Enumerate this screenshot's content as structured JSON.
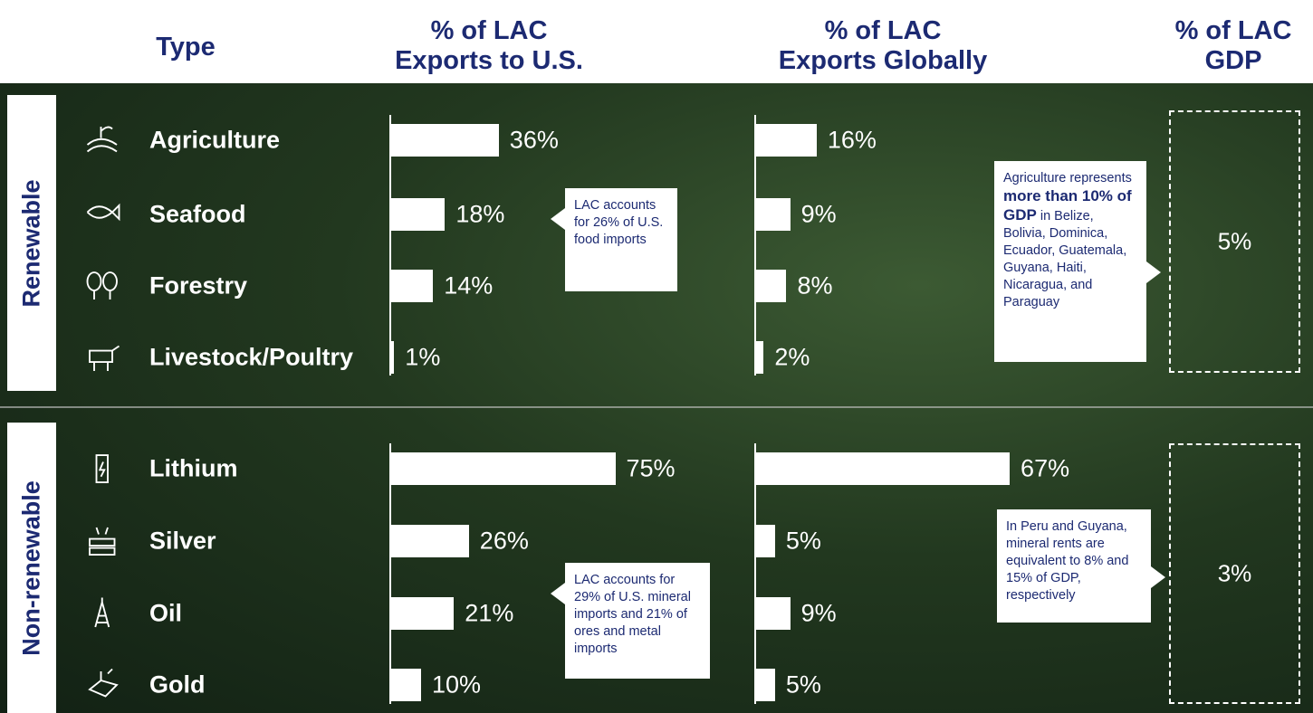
{
  "header": {
    "type": "Type",
    "columns": [
      [
        "% of LAC",
        "Exports to U.S."
      ],
      [
        "% of LAC",
        "Exports Globally"
      ],
      [
        "% of LAC",
        "GDP"
      ]
    ]
  },
  "xlim": [
    0,
    100
  ],
  "sections": [
    {
      "name": "Renewable",
      "categories": [
        "Agriculture",
        "Seafood",
        "Forestry",
        "Livestock/Poultry"
      ],
      "us": {
        "values": [
          36,
          18,
          14,
          1
        ],
        "value_labels": [
          "36%",
          "18%",
          "14%",
          "1%"
        ]
      },
      "global": {
        "values": [
          16,
          9,
          8,
          2
        ],
        "value_labels": [
          "16%",
          "9%",
          "8%",
          "2%"
        ]
      },
      "gdp": {
        "value": 5,
        "label": "5%"
      },
      "us_note": [
        {
          "text": "LAC accounts for 26% of U.S. food imports"
        }
      ],
      "gdp_note": [
        {
          "text": "Agriculture represents "
        },
        {
          "text": "more than 10% of GDP",
          "bold": true
        },
        {
          "text": " in Belize, Bolivia, Dominica, Ecuador, Guatemala, Guyana, Haiti, Nicaragua, and Paraguay"
        }
      ]
    },
    {
      "name": "Non-renewable",
      "categories": [
        "Lithium",
        "Silver",
        "Oil",
        "Gold"
      ],
      "us": {
        "values": [
          75,
          26,
          21,
          10
        ],
        "value_labels": [
          "75%",
          "26%",
          "21%",
          "10%"
        ]
      },
      "global": {
        "values": [
          67,
          5,
          9,
          5
        ],
        "value_labels": [
          "67%",
          "5%",
          "9%",
          "5%"
        ]
      },
      "gdp": {
        "value": 3,
        "label": "3%"
      },
      "us_note": [
        {
          "text": "LAC accounts for 29% of U.S. mineral imports and 21% of ores and metal imports"
        }
      ],
      "gdp_note": [
        {
          "text": "In Peru and Guyana, mineral rents are equivalent to 8% and 15% of GDP, respectively"
        }
      ]
    }
  ]
}
